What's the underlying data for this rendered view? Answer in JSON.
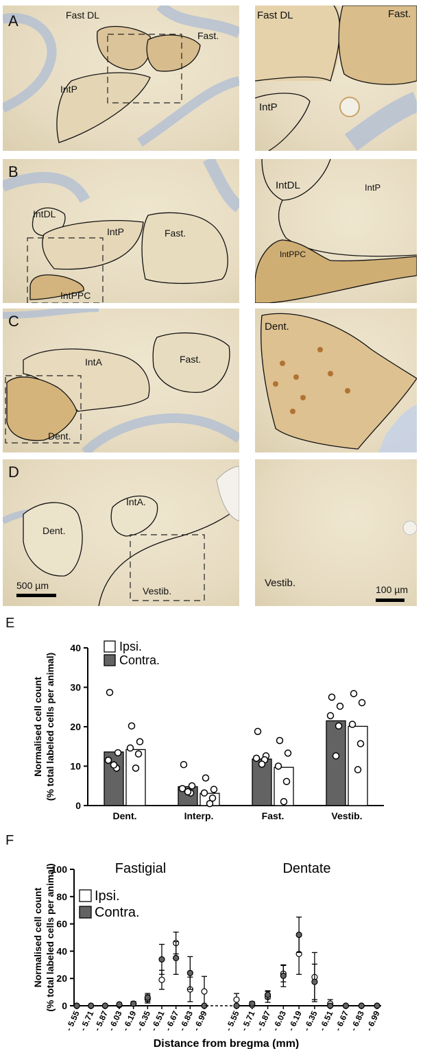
{
  "panels": {
    "A": {
      "letter": "A",
      "left_labels": [
        "Fast DL",
        "Fast.",
        "IntP"
      ],
      "right_labels": [
        "Fast DL",
        "Fast.",
        "IntP"
      ]
    },
    "B": {
      "letter": "B",
      "left_labels": [
        "IntDL",
        "IntP",
        "Fast.",
        "IntPPC"
      ],
      "right_labels": [
        "IntDL",
        "IntP",
        "IntPPC"
      ]
    },
    "C": {
      "letter": "C",
      "left_labels": [
        "IntA",
        "Fast.",
        "Dent."
      ],
      "right_labels": [
        "Dent."
      ]
    },
    "D": {
      "letter": "D",
      "left_labels": [
        "Dent.",
        "IntA.",
        "Vestib."
      ],
      "right_labels": [
        "Vestib."
      ]
    }
  },
  "scalebars": {
    "left": "500 µm",
    "right": "100 µm"
  },
  "figE": {
    "letter": "E"
  },
  "figF": {
    "letter": "F"
  },
  "colors": {
    "contra": "#636363",
    "ipsi": "#ffffff",
    "outline": "#000000",
    "tissue": "#e9dfc6",
    "stain": "#b07a3a",
    "nissl": "#9fb3d2"
  },
  "chart_data": [
    {
      "type": "bar",
      "ylabel": "Normalised cell count",
      "ylabel2": "(% total labeled cells per animal)",
      "categories": [
        "Dent.",
        "Interp.",
        "Fast.",
        "Vestib."
      ],
      "ylim": [
        0,
        40
      ],
      "yticks": [
        0,
        10,
        20,
        30,
        40
      ],
      "legend_position": "top-left",
      "series": [
        {
          "name": "Contra.",
          "values": [
            13.6,
            4.8,
            11.8,
            21.5
          ],
          "points": [
            [
              28.7,
              13.4,
              11.5,
              9.5,
              10.3
            ],
            [
              10.4,
              5.0,
              4.3,
              3.2,
              3.5
            ],
            [
              18.8,
              12.6,
              12.0,
              11.6,
              10.5
            ],
            [
              27.5,
              25.2,
              22.8,
              20.2,
              12.6
            ]
          ]
        },
        {
          "name": "Ipsi.",
          "values": [
            14.2,
            3.1,
            9.7,
            20.1
          ],
          "points": [
            [
              20.2,
              16.2,
              14.6,
              13.1,
              9.5
            ],
            [
              7.0,
              4.1,
              3.2,
              1.9,
              0.5
            ],
            [
              16.5,
              13.3,
              10.0,
              6.1,
              1.0
            ],
            [
              28.4,
              26.1,
              20.6,
              15.7,
              9.1
            ]
          ]
        }
      ]
    },
    {
      "type": "scatter",
      "ylabel": "Normalised cell count",
      "ylabel2": "(% total labeled cells per animal)",
      "xlabel": "Distance from bregma (mm)",
      "ylim": [
        0,
        100
      ],
      "yticks": [
        0,
        20,
        40,
        60,
        80,
        100
      ],
      "legend_position": "top-left",
      "groups": [
        {
          "title": "Fastigial",
          "categories": [
            "- 5.55",
            "- 5.71",
            "- 5.87",
            "- 6.03",
            "- 6.19",
            "- 6.35",
            "- 6.51",
            "- 6.67",
            "- 6.83",
            "- 6.99"
          ],
          "series": [
            {
              "name": "Ipsi.",
              "values": [
                0,
                0,
                0,
                0.5,
                1.5,
                5,
                19,
                46,
                12,
                10.5
              ],
              "err": [
                0,
                0,
                0,
                0.5,
                1.5,
                3,
                7,
                8,
                9,
                11
              ]
            },
            {
              "name": "Contra.",
              "values": [
                0,
                0,
                0,
                1,
                1.5,
                6,
                34,
                35,
                24,
                0
              ],
              "err": [
                0,
                0,
                0,
                1,
                1.5,
                3,
                11,
                12,
                12,
                0
              ]
            }
          ]
        },
        {
          "title": "Dentate",
          "categories": [
            "- 5.55",
            "- 5.71",
            "- 5.87",
            "- 6.03",
            "- 6.19",
            "- 6.35",
            "- 6.51",
            "- 6.67",
            "- 6.83",
            "- 6.99"
          ],
          "series": [
            {
              "name": "Ipsi.",
              "values": [
                4.5,
                0.5,
                6.5,
                23.5,
                38,
                21,
                1.5,
                0,
                0,
                0
              ],
              "err": [
                4.5,
                2,
                4,
                6,
                15,
                18,
                3,
                0,
                0,
                0
              ]
            },
            {
              "name": "Contra.",
              "values": [
                0,
                1.5,
                8,
                22,
                52,
                17.5,
                0,
                0,
                0,
                0
              ],
              "err": [
                0,
                1.5,
                3,
                8,
                13,
                13,
                0,
                0,
                0,
                0
              ]
            }
          ]
        }
      ]
    }
  ]
}
